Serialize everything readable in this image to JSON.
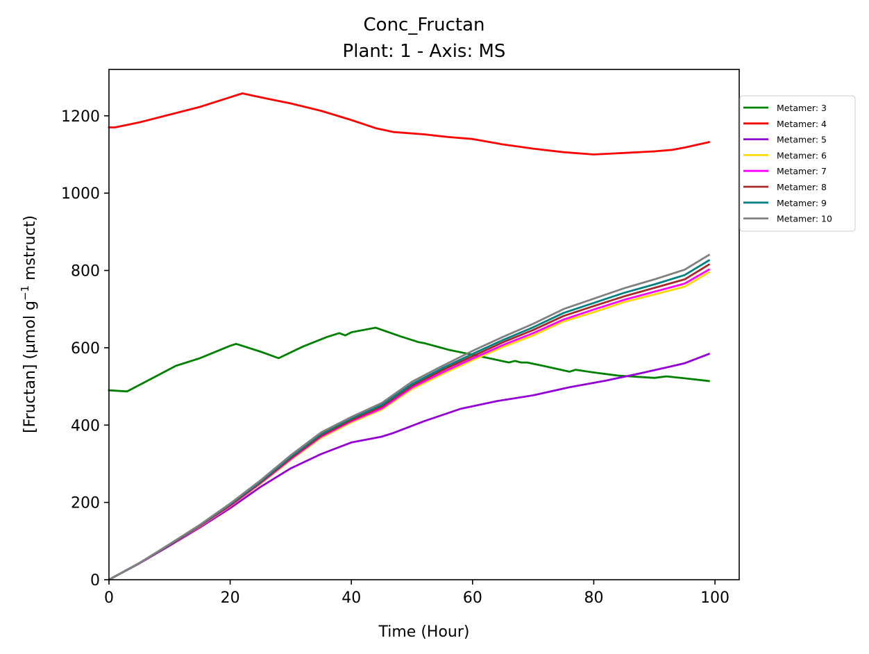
{
  "chart_data": {
    "type": "line",
    "title": "Conc_Fructan",
    "subtitle": "Plant: 1 - Axis: MS",
    "xlabel": "Time (Hour)",
    "ylabel_prefix": "[Fructan] (µmol g",
    "ylabel_sup": "−1",
    "ylabel_suffix": " mstruct)",
    "xlim": [
      0,
      104
    ],
    "ylim": [
      0,
      1320
    ],
    "xticks": [
      0,
      20,
      40,
      60,
      80,
      100
    ],
    "yticks": [
      0,
      200,
      400,
      600,
      800,
      1000,
      1200
    ],
    "grid": false,
    "legend_position": "right",
    "series": [
      {
        "name": "Metamer: 3",
        "color": "#008000",
        "x": [
          0,
          3,
          7,
          11,
          15,
          20,
          21,
          25,
          28,
          32,
          36,
          38,
          39,
          40,
          44,
          48,
          51,
          52,
          56,
          60,
          66,
          67,
          68,
          69,
          72,
          76,
          77,
          80,
          84,
          88,
          90,
          92,
          95,
          99
        ],
        "y": [
          490,
          487,
          520,
          553,
          573,
          605,
          610,
          590,
          573,
          603,
          628,
          638,
          632,
          640,
          652,
          630,
          615,
          612,
          595,
          582,
          562,
          566,
          562,
          562,
          552,
          538,
          543,
          536,
          528,
          524,
          522,
          526,
          521,
          514
        ]
      },
      {
        "name": "Metamer: 4",
        "color": "#ff0000",
        "x": [
          0,
          1,
          5,
          10,
          15,
          20,
          22,
          25,
          30,
          35,
          40,
          44,
          47,
          52,
          56,
          60,
          65,
          70,
          75,
          80,
          85,
          90,
          93,
          95,
          99
        ],
        "y": [
          1170,
          1170,
          1183,
          1203,
          1223,
          1248,
          1258,
          1248,
          1232,
          1213,
          1189,
          1168,
          1158,
          1152,
          1145,
          1140,
          1126,
          1115,
          1106,
          1100,
          1104,
          1108,
          1112,
          1118,
          1132
        ]
      },
      {
        "name": "Metamer: 5",
        "color": "#9400d3",
        "x": [
          0,
          5,
          10,
          15,
          20,
          25,
          30,
          35,
          40,
          45,
          47,
          52,
          58,
          64,
          70,
          76,
          82,
          88,
          92,
          95,
          99
        ],
        "y": [
          0,
          42,
          88,
          135,
          185,
          240,
          288,
          325,
          355,
          370,
          380,
          410,
          442,
          462,
          477,
          498,
          515,
          535,
          549,
          560,
          584
        ]
      },
      {
        "name": "Metamer: 6",
        "color": "#ffd700",
        "x": [
          0,
          5,
          10,
          15,
          20,
          25,
          30,
          35,
          40,
          45,
          50,
          55,
          60,
          65,
          70,
          75,
          80,
          85,
          90,
          95,
          99
        ],
        "y": [
          0,
          43,
          90,
          138,
          190,
          248,
          310,
          367,
          407,
          440,
          493,
          532,
          568,
          602,
          632,
          668,
          692,
          718,
          738,
          758,
          795
        ]
      },
      {
        "name": "Metamer: 7",
        "color": "#ff00ff",
        "x": [
          0,
          5,
          10,
          15,
          20,
          25,
          30,
          35,
          40,
          45,
          50,
          55,
          60,
          65,
          70,
          75,
          80,
          85,
          90,
          95,
          99
        ],
        "y": [
          0,
          43,
          90,
          139,
          191,
          250,
          312,
          370,
          410,
          443,
          497,
          536,
          572,
          607,
          638,
          673,
          699,
          724,
          745,
          766,
          802
        ]
      },
      {
        "name": "Metamer: 8",
        "color": "#a52a2a",
        "x": [
          0,
          5,
          10,
          15,
          20,
          25,
          30,
          35,
          40,
          45,
          50,
          55,
          60,
          65,
          70,
          75,
          80,
          85,
          90,
          95,
          99
        ],
        "y": [
          0,
          43,
          90,
          140,
          193,
          252,
          315,
          373,
          413,
          448,
          502,
          542,
          578,
          614,
          646,
          682,
          708,
          733,
          755,
          777,
          815
        ]
      },
      {
        "name": "Metamer: 9",
        "color": "#008080",
        "x": [
          0,
          5,
          10,
          15,
          20,
          25,
          30,
          35,
          40,
          45,
          50,
          55,
          60,
          65,
          70,
          75,
          80,
          85,
          90,
          95,
          99
        ],
        "y": [
          0,
          43,
          91,
          141,
          195,
          254,
          318,
          377,
          417,
          452,
          506,
          547,
          584,
          620,
          653,
          690,
          716,
          742,
          764,
          788,
          826
        ]
      },
      {
        "name": "Metamer: 10",
        "color": "#808080",
        "x": [
          0,
          5,
          10,
          15,
          20,
          25,
          30,
          35,
          40,
          45,
          50,
          55,
          60,
          65,
          70,
          75,
          80,
          85,
          90,
          95,
          99
        ],
        "y": [
          0,
          43,
          92,
          142,
          197,
          257,
          322,
          381,
          421,
          457,
          512,
          553,
          592,
          628,
          662,
          700,
          727,
          754,
          777,
          802,
          840
        ]
      }
    ]
  }
}
